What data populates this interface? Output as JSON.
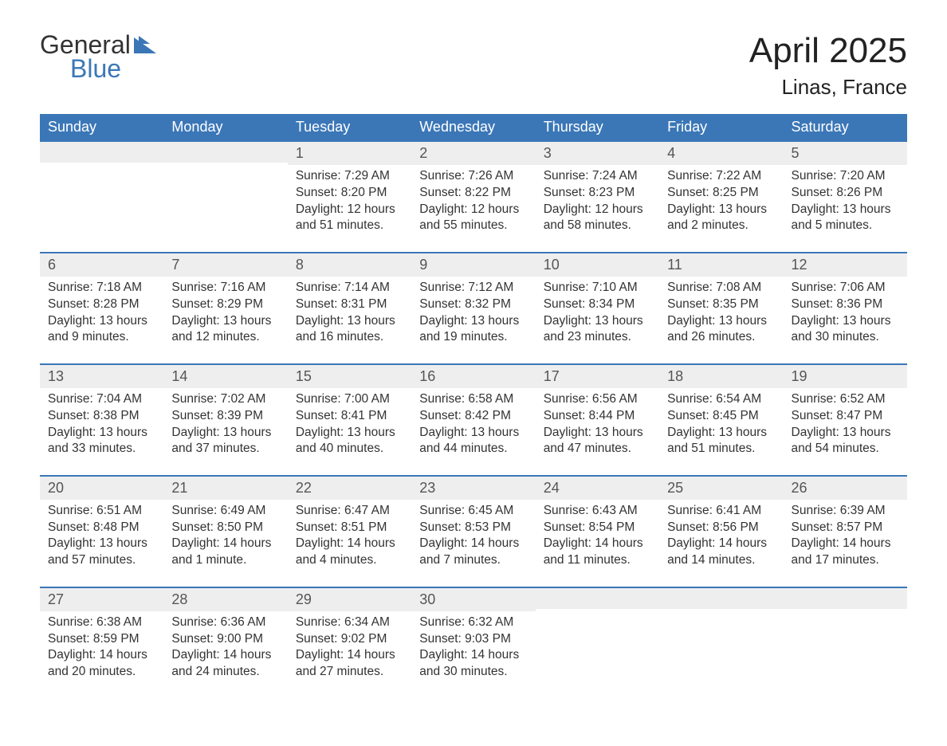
{
  "logo": {
    "word1": "General",
    "word2": "Blue",
    "flag_color": "#3b77b7"
  },
  "header": {
    "month_title": "April 2025",
    "location": "Linas, France"
  },
  "colors": {
    "header_bg": "#3b77b7",
    "header_text": "#ffffff",
    "daybar_bg": "#eeeeee",
    "text": "#333333",
    "row_border": "#3b77b7"
  },
  "weekdays": [
    "Sunday",
    "Monday",
    "Tuesday",
    "Wednesday",
    "Thursday",
    "Friday",
    "Saturday"
  ],
  "weeks": [
    [
      {
        "day": "",
        "sunrise": "",
        "sunset": "",
        "daylight": ""
      },
      {
        "day": "",
        "sunrise": "",
        "sunset": "",
        "daylight": ""
      },
      {
        "day": "1",
        "sunrise": "Sunrise: 7:29 AM",
        "sunset": "Sunset: 8:20 PM",
        "daylight": "Daylight: 12 hours and 51 minutes."
      },
      {
        "day": "2",
        "sunrise": "Sunrise: 7:26 AM",
        "sunset": "Sunset: 8:22 PM",
        "daylight": "Daylight: 12 hours and 55 minutes."
      },
      {
        "day": "3",
        "sunrise": "Sunrise: 7:24 AM",
        "sunset": "Sunset: 8:23 PM",
        "daylight": "Daylight: 12 hours and 58 minutes."
      },
      {
        "day": "4",
        "sunrise": "Sunrise: 7:22 AM",
        "sunset": "Sunset: 8:25 PM",
        "daylight": "Daylight: 13 hours and 2 minutes."
      },
      {
        "day": "5",
        "sunrise": "Sunrise: 7:20 AM",
        "sunset": "Sunset: 8:26 PM",
        "daylight": "Daylight: 13 hours and 5 minutes."
      }
    ],
    [
      {
        "day": "6",
        "sunrise": "Sunrise: 7:18 AM",
        "sunset": "Sunset: 8:28 PM",
        "daylight": "Daylight: 13 hours and 9 minutes."
      },
      {
        "day": "7",
        "sunrise": "Sunrise: 7:16 AM",
        "sunset": "Sunset: 8:29 PM",
        "daylight": "Daylight: 13 hours and 12 minutes."
      },
      {
        "day": "8",
        "sunrise": "Sunrise: 7:14 AM",
        "sunset": "Sunset: 8:31 PM",
        "daylight": "Daylight: 13 hours and 16 minutes."
      },
      {
        "day": "9",
        "sunrise": "Sunrise: 7:12 AM",
        "sunset": "Sunset: 8:32 PM",
        "daylight": "Daylight: 13 hours and 19 minutes."
      },
      {
        "day": "10",
        "sunrise": "Sunrise: 7:10 AM",
        "sunset": "Sunset: 8:34 PM",
        "daylight": "Daylight: 13 hours and 23 minutes."
      },
      {
        "day": "11",
        "sunrise": "Sunrise: 7:08 AM",
        "sunset": "Sunset: 8:35 PM",
        "daylight": "Daylight: 13 hours and 26 minutes."
      },
      {
        "day": "12",
        "sunrise": "Sunrise: 7:06 AM",
        "sunset": "Sunset: 8:36 PM",
        "daylight": "Daylight: 13 hours and 30 minutes."
      }
    ],
    [
      {
        "day": "13",
        "sunrise": "Sunrise: 7:04 AM",
        "sunset": "Sunset: 8:38 PM",
        "daylight": "Daylight: 13 hours and 33 minutes."
      },
      {
        "day": "14",
        "sunrise": "Sunrise: 7:02 AM",
        "sunset": "Sunset: 8:39 PM",
        "daylight": "Daylight: 13 hours and 37 minutes."
      },
      {
        "day": "15",
        "sunrise": "Sunrise: 7:00 AM",
        "sunset": "Sunset: 8:41 PM",
        "daylight": "Daylight: 13 hours and 40 minutes."
      },
      {
        "day": "16",
        "sunrise": "Sunrise: 6:58 AM",
        "sunset": "Sunset: 8:42 PM",
        "daylight": "Daylight: 13 hours and 44 minutes."
      },
      {
        "day": "17",
        "sunrise": "Sunrise: 6:56 AM",
        "sunset": "Sunset: 8:44 PM",
        "daylight": "Daylight: 13 hours and 47 minutes."
      },
      {
        "day": "18",
        "sunrise": "Sunrise: 6:54 AM",
        "sunset": "Sunset: 8:45 PM",
        "daylight": "Daylight: 13 hours and 51 minutes."
      },
      {
        "day": "19",
        "sunrise": "Sunrise: 6:52 AM",
        "sunset": "Sunset: 8:47 PM",
        "daylight": "Daylight: 13 hours and 54 minutes."
      }
    ],
    [
      {
        "day": "20",
        "sunrise": "Sunrise: 6:51 AM",
        "sunset": "Sunset: 8:48 PM",
        "daylight": "Daylight: 13 hours and 57 minutes."
      },
      {
        "day": "21",
        "sunrise": "Sunrise: 6:49 AM",
        "sunset": "Sunset: 8:50 PM",
        "daylight": "Daylight: 14 hours and 1 minute."
      },
      {
        "day": "22",
        "sunrise": "Sunrise: 6:47 AM",
        "sunset": "Sunset: 8:51 PM",
        "daylight": "Daylight: 14 hours and 4 minutes."
      },
      {
        "day": "23",
        "sunrise": "Sunrise: 6:45 AM",
        "sunset": "Sunset: 8:53 PM",
        "daylight": "Daylight: 14 hours and 7 minutes."
      },
      {
        "day": "24",
        "sunrise": "Sunrise: 6:43 AM",
        "sunset": "Sunset: 8:54 PM",
        "daylight": "Daylight: 14 hours and 11 minutes."
      },
      {
        "day": "25",
        "sunrise": "Sunrise: 6:41 AM",
        "sunset": "Sunset: 8:56 PM",
        "daylight": "Daylight: 14 hours and 14 minutes."
      },
      {
        "day": "26",
        "sunrise": "Sunrise: 6:39 AM",
        "sunset": "Sunset: 8:57 PM",
        "daylight": "Daylight: 14 hours and 17 minutes."
      }
    ],
    [
      {
        "day": "27",
        "sunrise": "Sunrise: 6:38 AM",
        "sunset": "Sunset: 8:59 PM",
        "daylight": "Daylight: 14 hours and 20 minutes."
      },
      {
        "day": "28",
        "sunrise": "Sunrise: 6:36 AM",
        "sunset": "Sunset: 9:00 PM",
        "daylight": "Daylight: 14 hours and 24 minutes."
      },
      {
        "day": "29",
        "sunrise": "Sunrise: 6:34 AM",
        "sunset": "Sunset: 9:02 PM",
        "daylight": "Daylight: 14 hours and 27 minutes."
      },
      {
        "day": "30",
        "sunrise": "Sunrise: 6:32 AM",
        "sunset": "Sunset: 9:03 PM",
        "daylight": "Daylight: 14 hours and 30 minutes."
      },
      {
        "day": "",
        "sunrise": "",
        "sunset": "",
        "daylight": ""
      },
      {
        "day": "",
        "sunrise": "",
        "sunset": "",
        "daylight": ""
      },
      {
        "day": "",
        "sunrise": "",
        "sunset": "",
        "daylight": ""
      }
    ]
  ]
}
